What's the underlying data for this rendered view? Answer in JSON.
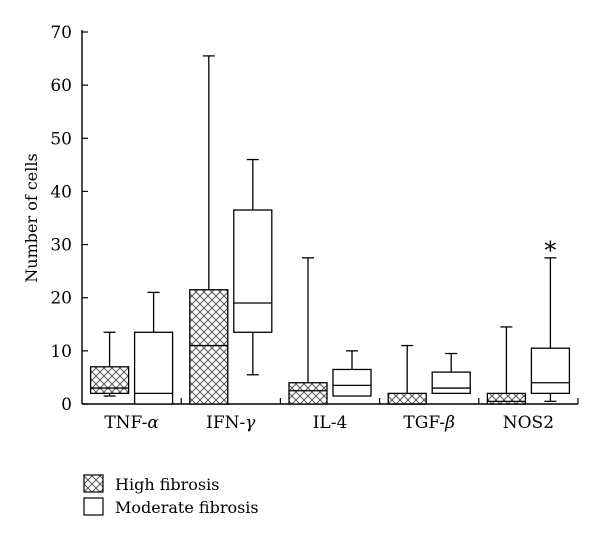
{
  "chart_data": {
    "type": "boxplot",
    "ylabel": "Number of cells",
    "xlabel": "",
    "ylim": [
      0,
      70
    ],
    "yticks": [
      0,
      10,
      20,
      30,
      40,
      50,
      60,
      70
    ],
    "grid": false,
    "legend_position": "bottom-left",
    "categories": [
      {
        "text": "TNF-",
        "greek": "α"
      },
      {
        "text": "IFN-",
        "greek": "γ"
      },
      {
        "text": "IL-4",
        "greek": ""
      },
      {
        "text": "TGF-",
        "greek": "β"
      },
      {
        "text": "NOS2",
        "greek": ""
      }
    ],
    "series": [
      {
        "name": "High fibrosis",
        "fill": "crosshatch",
        "boxes": [
          {
            "min": 1.5,
            "q1": 2.0,
            "median": 3.0,
            "q3": 7.0,
            "max": 13.5
          },
          {
            "min": 0.0,
            "q1": 0.0,
            "median": 11.0,
            "q3": 21.5,
            "max": 65.5
          },
          {
            "min": 0.0,
            "q1": 0.0,
            "median": 2.5,
            "q3": 4.0,
            "max": 27.5
          },
          {
            "min": 0.0,
            "q1": 0.0,
            "median": 0.0,
            "q3": 2.0,
            "max": 11.0
          },
          {
            "min": 0.0,
            "q1": 0.0,
            "median": 0.5,
            "q3": 2.0,
            "max": 14.5
          }
        ]
      },
      {
        "name": "Moderate fibrosis",
        "fill": "white",
        "boxes": [
          {
            "min": 0.0,
            "q1": 0.0,
            "median": 2.0,
            "q3": 13.5,
            "max": 21.0
          },
          {
            "min": 5.5,
            "q1": 13.5,
            "median": 19.0,
            "q3": 36.5,
            "max": 46.0
          },
          {
            "min": 1.5,
            "q1": 1.5,
            "median": 3.5,
            "q3": 6.5,
            "max": 10.0
          },
          {
            "min": 2.0,
            "q1": 2.0,
            "median": 3.0,
            "q3": 6.0,
            "max": 9.5
          },
          {
            "min": 0.5,
            "q1": 2.0,
            "median": 4.0,
            "q3": 10.5,
            "max": 27.5
          }
        ]
      }
    ],
    "annotations": [
      {
        "text": "*",
        "category_index": 4,
        "series_index": 1,
        "y": 30
      }
    ]
  }
}
